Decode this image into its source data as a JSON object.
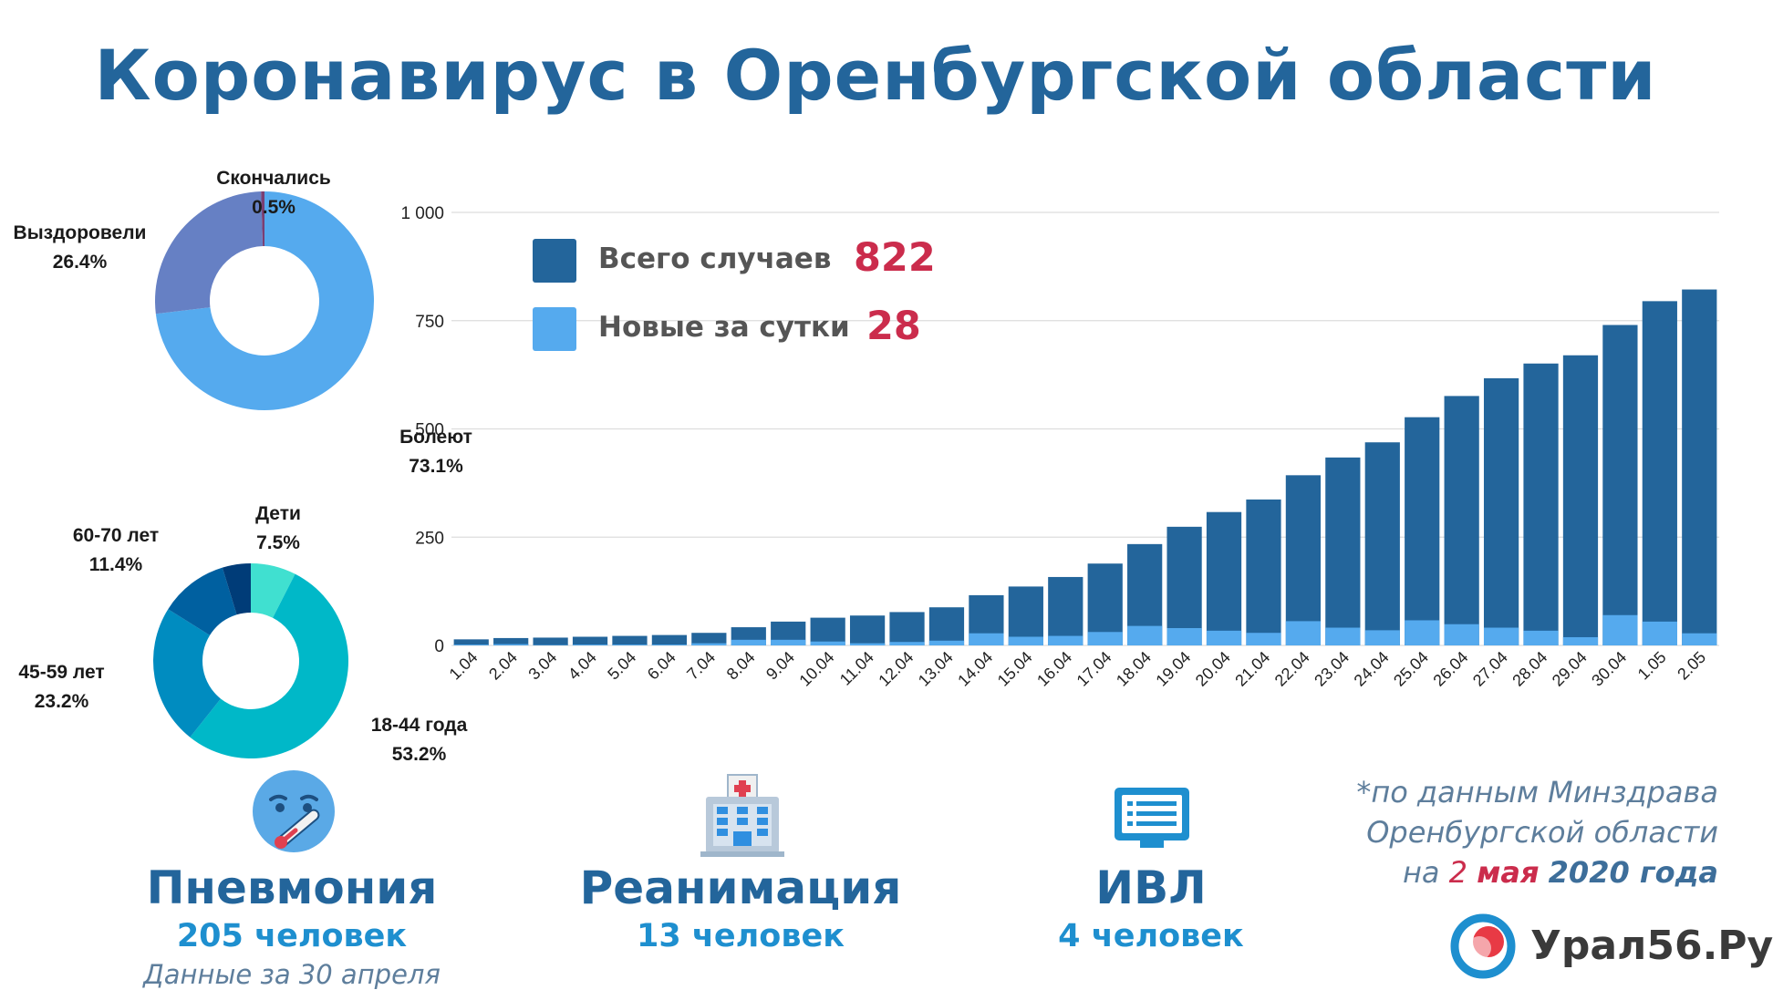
{
  "title": "Коронавирус в Оренбургской области",
  "legend": {
    "total_label": "Всего случаев",
    "total_value": "822",
    "new_label": "Новые за сутки",
    "new_value": "28"
  },
  "status_labels": {
    "died_name": "Скончались",
    "died_pct": "0.5%",
    "recovered_name": "Выздоровели",
    "recovered_pct": "26.4%",
    "sick_name": "Болеют",
    "sick_pct": "73.1%"
  },
  "age_labels": {
    "kids_name": "Дети",
    "kids_pct": "7.5%",
    "a6070_name": "60-70 лет",
    "a6070_pct": "11.4%",
    "a4559_name": "45-59 лет",
    "a4559_pct": "23.2%",
    "a1844_name": "18-44 года",
    "a1844_pct": "53.2%"
  },
  "stats": {
    "pneumonia_title": "Пневмония",
    "pneumonia_value": "205 человек",
    "pneumonia_note": "Данные за 30 апреля",
    "icu_title": "Реанимация",
    "icu_value": "13 человек",
    "ventilator_title": "ИВЛ",
    "ventilator_value": "4 человек"
  },
  "source": {
    "line1": "*по данным Минздрава",
    "line2": "Оренбургской области",
    "line3_a": "на ",
    "line3_day": "2",
    "line3_month": "мая",
    "line3_year": "2020 года"
  },
  "brand": {
    "name": "Урал56.Ру"
  },
  "colors": {
    "title": "#23659b",
    "total_bar": "#23659b",
    "new_bar": "#55aaee",
    "highlight": "#cb2c4c",
    "sick": "#55aaee",
    "recovered": "#6680c4",
    "died": "#7a3f73",
    "age_1844": "#00b8c8",
    "age_4559": "#008cc0",
    "age_6070": "#0060a0",
    "age_other": "#003c78",
    "age_kids": "#40e0d0"
  },
  "icons": {
    "pneumonia": "sick-face-thermometer-icon",
    "icu": "hospital-building-icon",
    "ventilator": "monitor-icon",
    "brand": "ural56-logo-icon"
  },
  "chart_data": [
    {
      "type": "bar",
      "stacked": false,
      "categories": [
        "1.04",
        "2.04",
        "3.04",
        "4.04",
        "5.04",
        "6.04",
        "7.04",
        "8.04",
        "9.04",
        "10.04",
        "11.04",
        "12.04",
        "13.04",
        "14.04",
        "15.04",
        "16.04",
        "17.04",
        "18.04",
        "19.04",
        "20.04",
        "21.04",
        "22.04",
        "23.04",
        "24.04",
        "25.04",
        "26.04",
        "27.04",
        "28.04",
        "29.04",
        "30.04",
        "1.05",
        "2.05"
      ],
      "series": [
        {
          "name": "Всего случаев",
          "values": [
            14,
            17,
            18,
            20,
            22,
            24,
            29,
            42,
            55,
            64,
            69,
            77,
            88,
            116,
            136,
            158,
            189,
            234,
            274,
            308,
            337,
            393,
            434,
            469,
            527,
            576,
            617,
            651,
            670,
            740,
            795,
            822
          ]
        },
        {
          "name": "Новые за сутки",
          "values": [
            2,
            3,
            1,
            2,
            2,
            2,
            5,
            13,
            13,
            9,
            5,
            8,
            11,
            28,
            20,
            22,
            31,
            45,
            40,
            34,
            29,
            56,
            41,
            35,
            58,
            49,
            41,
            34,
            19,
            70,
            55,
            28
          ]
        }
      ],
      "ylim": [
        0,
        1000
      ],
      "yticks": [
        0,
        250,
        500,
        750,
        1000
      ],
      "ytick_labels": [
        "0",
        "250",
        "500",
        "750",
        "1 000"
      ],
      "grid": true,
      "legend_position": "top-left"
    },
    {
      "type": "pie",
      "donut": true,
      "labels": [
        "Болеют",
        "Выздоровели",
        "Скончались"
      ],
      "values": [
        73.1,
        26.4,
        0.5
      ]
    },
    {
      "type": "pie",
      "donut": true,
      "labels": [
        "Дети",
        "18-44 года",
        "45-59 лет",
        "60-70 лет",
        ""
      ],
      "values": [
        7.5,
        53.2,
        23.2,
        11.4,
        4.7
      ]
    }
  ]
}
